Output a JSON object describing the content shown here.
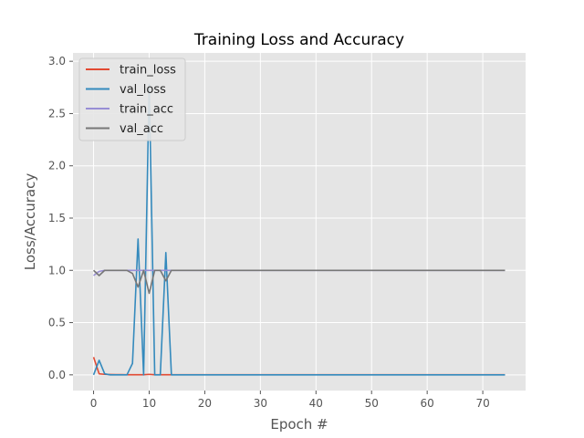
{
  "chart_data": {
    "type": "line",
    "title": "Training Loss and Accuracy",
    "xlabel": "Epoch #",
    "ylabel": "Loss/Accuracy",
    "xlim": [
      -3.7,
      77.7
    ],
    "ylim": [
      -0.15,
      3.08
    ],
    "xticks": [
      0,
      10,
      20,
      30,
      40,
      50,
      60,
      70
    ],
    "yticks": [
      0.0,
      0.5,
      1.0,
      1.5,
      2.0,
      2.5,
      3.0
    ],
    "ytick_labels": [
      "0.0",
      "0.5",
      "1.0",
      "1.5",
      "2.0",
      "2.5",
      "3.0"
    ],
    "grid": true,
    "legend_position": "upper-left",
    "background": "#e5e5e5",
    "series": [
      {
        "name": "train_loss",
        "color": "#e24a33",
        "x": [
          0,
          1,
          2,
          3,
          4,
          5,
          6,
          7,
          8,
          9,
          10,
          11,
          12,
          13,
          14,
          15,
          16,
          17,
          18,
          19,
          20,
          21,
          22,
          23,
          24,
          25,
          26,
          27,
          28,
          29,
          30,
          31,
          32,
          33,
          34,
          35,
          36,
          37,
          38,
          39,
          40,
          41,
          42,
          43,
          44,
          45,
          46,
          47,
          48,
          49,
          50,
          51,
          52,
          53,
          54,
          55,
          56,
          57,
          58,
          59,
          60,
          61,
          62,
          63,
          64,
          65,
          66,
          67,
          68,
          69,
          70,
          71,
          72,
          73,
          74
        ],
        "values": [
          0.17,
          0.01,
          0.005,
          0.003,
          0.002,
          0.002,
          0.001,
          0.001,
          0.001,
          0.001,
          0.005,
          0.001,
          0.001,
          0.001,
          0.001,
          0.001,
          0.001,
          0.001,
          0.001,
          0.001,
          0.001,
          0.001,
          0.001,
          0.001,
          0.001,
          0.001,
          0.001,
          0.001,
          0.001,
          0.001,
          0.001,
          0.001,
          0.001,
          0.001,
          0.001,
          0.001,
          0.001,
          0.001,
          0.001,
          0.001,
          0.001,
          0.001,
          0.001,
          0.001,
          0.001,
          0.001,
          0.001,
          0.001,
          0.001,
          0.001,
          0.001,
          0.001,
          0.001,
          0.001,
          0.001,
          0.001,
          0.001,
          0.001,
          0.001,
          0.001,
          0.001,
          0.001,
          0.001,
          0.001,
          0.001,
          0.001,
          0.001,
          0.001,
          0.001,
          0.001,
          0.001,
          0.001,
          0.001,
          0.001,
          0.001
        ]
      },
      {
        "name": "val_loss",
        "color": "#348abd",
        "x": [
          0,
          1,
          2,
          3,
          4,
          5,
          6,
          7,
          8,
          9,
          10,
          11,
          12,
          13,
          14,
          15,
          16,
          17,
          18,
          19,
          20,
          21,
          22,
          23,
          24,
          25,
          26,
          27,
          28,
          29,
          30,
          31,
          32,
          33,
          34,
          35,
          36,
          37,
          38,
          39,
          40,
          41,
          42,
          43,
          44,
          45,
          46,
          47,
          48,
          49,
          50,
          51,
          52,
          53,
          54,
          55,
          56,
          57,
          58,
          59,
          60,
          61,
          62,
          63,
          64,
          65,
          66,
          67,
          68,
          69,
          70,
          71,
          72,
          73,
          74
        ],
        "values": [
          0.0,
          0.14,
          0.01,
          0.0,
          0.0,
          0.0,
          0.0,
          0.11,
          1.3,
          0.0,
          2.78,
          0.0,
          0.0,
          1.17,
          0.0,
          0.0,
          0.0,
          0.0,
          0.0,
          0.0,
          0.0,
          0.0,
          0.0,
          0.0,
          0.0,
          0.0,
          0.0,
          0.0,
          0.0,
          0.0,
          0.0,
          0.0,
          0.0,
          0.0,
          0.0,
          0.0,
          0.0,
          0.0,
          0.0,
          0.0,
          0.0,
          0.0,
          0.0,
          0.0,
          0.0,
          0.0,
          0.0,
          0.0,
          0.0,
          0.0,
          0.0,
          0.0,
          0.0,
          0.0,
          0.0,
          0.0,
          0.0,
          0.0,
          0.0,
          0.0,
          0.0,
          0.0,
          0.0,
          0.0,
          0.0,
          0.0,
          0.0,
          0.0,
          0.0,
          0.0,
          0.0,
          0.0,
          0.0,
          0.0,
          0.0
        ]
      },
      {
        "name": "train_acc",
        "color": "#988ed5",
        "x": [
          0,
          1,
          2,
          3,
          4,
          5,
          6,
          7,
          8,
          9,
          10,
          11,
          12,
          13,
          14,
          15,
          16,
          17,
          18,
          19,
          20,
          21,
          22,
          23,
          24,
          25,
          26,
          27,
          28,
          29,
          30,
          31,
          32,
          33,
          34,
          35,
          36,
          37,
          38,
          39,
          40,
          41,
          42,
          43,
          44,
          45,
          46,
          47,
          48,
          49,
          50,
          51,
          52,
          53,
          54,
          55,
          56,
          57,
          58,
          59,
          60,
          61,
          62,
          63,
          64,
          65,
          66,
          67,
          68,
          69,
          70,
          71,
          72,
          73,
          74
        ],
        "values": [
          0.95,
          0.99,
          1.0,
          1.0,
          1.0,
          1.0,
          1.0,
          1.0,
          1.0,
          1.0,
          1.0,
          1.0,
          1.0,
          1.0,
          1.0,
          1.0,
          1.0,
          1.0,
          1.0,
          1.0,
          1.0,
          1.0,
          1.0,
          1.0,
          1.0,
          1.0,
          1.0,
          1.0,
          1.0,
          1.0,
          1.0,
          1.0,
          1.0,
          1.0,
          1.0,
          1.0,
          1.0,
          1.0,
          1.0,
          1.0,
          1.0,
          1.0,
          1.0,
          1.0,
          1.0,
          1.0,
          1.0,
          1.0,
          1.0,
          1.0,
          1.0,
          1.0,
          1.0,
          1.0,
          1.0,
          1.0,
          1.0,
          1.0,
          1.0,
          1.0,
          1.0,
          1.0,
          1.0,
          1.0,
          1.0,
          1.0,
          1.0,
          1.0,
          1.0,
          1.0,
          1.0,
          1.0,
          1.0,
          1.0,
          1.0
        ]
      },
      {
        "name": "val_acc",
        "color": "#777777",
        "x": [
          0,
          1,
          2,
          3,
          4,
          5,
          6,
          7,
          8,
          9,
          10,
          11,
          12,
          13,
          14,
          15,
          16,
          17,
          18,
          19,
          20,
          21,
          22,
          23,
          24,
          25,
          26,
          27,
          28,
          29,
          30,
          31,
          32,
          33,
          34,
          35,
          36,
          37,
          38,
          39,
          40,
          41,
          42,
          43,
          44,
          45,
          46,
          47,
          48,
          49,
          50,
          51,
          52,
          53,
          54,
          55,
          56,
          57,
          58,
          59,
          60,
          61,
          62,
          63,
          64,
          65,
          66,
          67,
          68,
          69,
          70,
          71,
          72,
          73,
          74
        ],
        "values": [
          1.0,
          0.95,
          1.0,
          1.0,
          1.0,
          1.0,
          1.0,
          0.97,
          0.84,
          1.0,
          0.78,
          1.0,
          1.0,
          0.9,
          1.0,
          1.0,
          1.0,
          1.0,
          1.0,
          1.0,
          1.0,
          1.0,
          1.0,
          1.0,
          1.0,
          1.0,
          1.0,
          1.0,
          1.0,
          1.0,
          1.0,
          1.0,
          1.0,
          1.0,
          1.0,
          1.0,
          1.0,
          1.0,
          1.0,
          1.0,
          1.0,
          1.0,
          1.0,
          1.0,
          1.0,
          1.0,
          1.0,
          1.0,
          1.0,
          1.0,
          1.0,
          1.0,
          1.0,
          1.0,
          1.0,
          1.0,
          1.0,
          1.0,
          1.0,
          1.0,
          1.0,
          1.0,
          1.0,
          1.0,
          1.0,
          1.0,
          1.0,
          1.0,
          1.0,
          1.0,
          1.0,
          1.0,
          1.0,
          1.0,
          1.0
        ]
      }
    ]
  }
}
